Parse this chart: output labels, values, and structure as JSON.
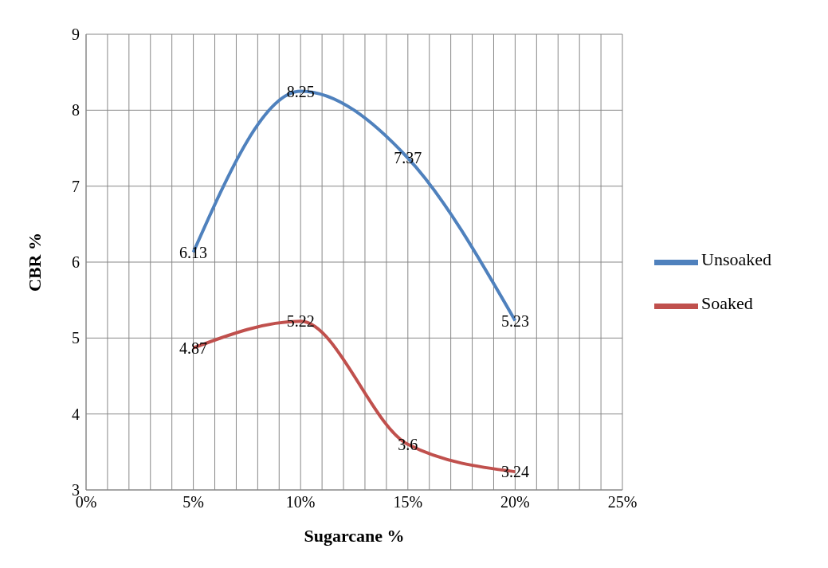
{
  "chart_data": {
    "type": "line",
    "xlabel": "Sugarcane %",
    "ylabel": "CBR %",
    "x": [
      0.05,
      0.1,
      0.15,
      0.2
    ],
    "series": [
      {
        "name": "Unsoaked",
        "color": "#4f81bd",
        "values": [
          6.13,
          8.25,
          7.37,
          5.23
        ]
      },
      {
        "name": "Soaked",
        "color": "#c0504d",
        "values": [
          4.87,
          5.22,
          3.6,
          3.24
        ]
      }
    ],
    "xlim": [
      0,
      0.25
    ],
    "xticks": [
      {
        "value": 0,
        "label": "0%"
      },
      {
        "value": 0.01,
        "label": null
      },
      {
        "value": 0.02,
        "label": null
      },
      {
        "value": 0.03,
        "label": null
      },
      {
        "value": 0.04,
        "label": null
      },
      {
        "value": 0.05,
        "label": "5%"
      },
      {
        "value": 0.06,
        "label": null
      },
      {
        "value": 0.07,
        "label": null
      },
      {
        "value": 0.08,
        "label": null
      },
      {
        "value": 0.09,
        "label": null
      },
      {
        "value": 0.1,
        "label": "10%"
      },
      {
        "value": 0.11,
        "label": null
      },
      {
        "value": 0.12,
        "label": null
      },
      {
        "value": 0.13,
        "label": null
      },
      {
        "value": 0.14,
        "label": null
      },
      {
        "value": 0.15,
        "label": "15%"
      },
      {
        "value": 0.16,
        "label": null
      },
      {
        "value": 0.17,
        "label": null
      },
      {
        "value": 0.18,
        "label": null
      },
      {
        "value": 0.19,
        "label": null
      },
      {
        "value": 0.2,
        "label": "20%"
      },
      {
        "value": 0.21,
        "label": null
      },
      {
        "value": 0.22,
        "label": null
      },
      {
        "value": 0.23,
        "label": null
      },
      {
        "value": 0.24,
        "label": null
      },
      {
        "value": 0.25,
        "label": "25%"
      }
    ],
    "ylim": [
      3,
      9
    ],
    "yticks": [
      3,
      4,
      5,
      6,
      7,
      8,
      9
    ],
    "grid": true,
    "legend": "right",
    "marker": "none",
    "line_style": "solid",
    "data_labels": true
  }
}
